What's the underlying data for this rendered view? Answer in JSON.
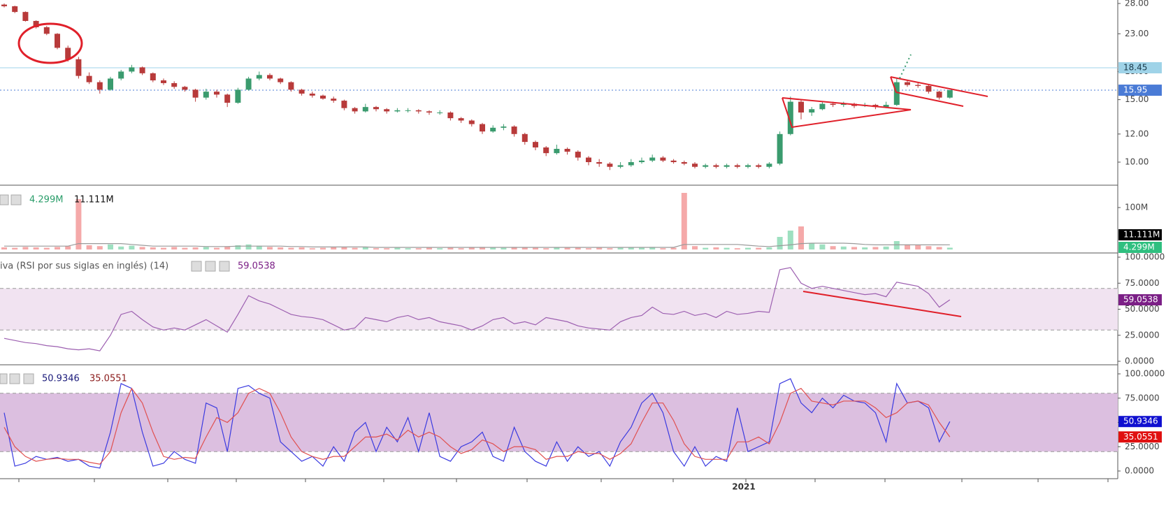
{
  "chart_data": [
    {
      "type": "candlestick",
      "log": true,
      "ylim": [
        8.61,
        28.64
      ],
      "yticks": [
        {
          "value": 28,
          "label": "28.00"
        },
        {
          "value": 23,
          "label": "23.00"
        },
        {
          "value": 18,
          "label": "18.00"
        },
        {
          "value": 15,
          "label": "15.00"
        },
        {
          "value": 12,
          "label": "12.00"
        },
        {
          "value": 10,
          "label": "10.00"
        }
      ],
      "up_color": "#3a9b6e",
      "down_color": "#b83a3a",
      "hlines": [
        {
          "value": 18.45,
          "color": "#9fd3e8",
          "text_color": "#1a3a4a",
          "line_style": "solid"
        },
        {
          "value": 15.95,
          "color": "#4a7bd6",
          "text_color": "#ffffff",
          "line_style": "dotted"
        }
      ],
      "x_label": "2021",
      "candles": [
        [
          27.8,
          28.0,
          27.3,
          27.5
        ],
        [
          27.5,
          27.6,
          26.3,
          26.5
        ],
        [
          26.5,
          26.6,
          24.9,
          25.0
        ],
        [
          25.0,
          25.1,
          23.8,
          24.0
        ],
        [
          24.0,
          24.2,
          22.8,
          23.0
        ],
        [
          23.0,
          23.1,
          20.8,
          21.0
        ],
        [
          21.0,
          21.3,
          19.2,
          19.5
        ],
        [
          19.5,
          19.8,
          17.2,
          17.5
        ],
        [
          17.5,
          17.9,
          16.6,
          16.8
        ],
        [
          16.8,
          17.0,
          15.6,
          16.0
        ],
        [
          16.0,
          17.4,
          15.9,
          17.2
        ],
        [
          17.2,
          18.2,
          17.0,
          18.0
        ],
        [
          18.0,
          18.8,
          17.8,
          18.5
        ],
        [
          18.5,
          18.6,
          17.6,
          17.8
        ],
        [
          17.8,
          17.9,
          16.8,
          17.0
        ],
        [
          17.0,
          17.2,
          16.5,
          16.7
        ],
        [
          16.7,
          16.9,
          16.1,
          16.3
        ],
        [
          16.3,
          16.4,
          15.8,
          16.0
        ],
        [
          16.0,
          16.1,
          14.8,
          15.2
        ],
        [
          15.2,
          16.1,
          15.0,
          15.8
        ],
        [
          15.8,
          16.0,
          15.2,
          15.5
        ],
        [
          15.5,
          15.6,
          14.3,
          14.7
        ],
        [
          14.7,
          16.2,
          14.6,
          16.0
        ],
        [
          16.0,
          17.4,
          15.9,
          17.2
        ],
        [
          17.2,
          18.0,
          17.0,
          17.6
        ],
        [
          17.6,
          17.8,
          17.0,
          17.2
        ],
        [
          17.2,
          17.3,
          16.6,
          16.8
        ],
        [
          16.8,
          16.9,
          15.8,
          16.0
        ],
        [
          16.0,
          16.1,
          15.4,
          15.6
        ],
        [
          15.6,
          15.8,
          15.2,
          15.4
        ],
        [
          15.4,
          15.5,
          15.0,
          15.1
        ],
        [
          15.1,
          15.3,
          14.7,
          14.9
        ],
        [
          14.9,
          15.0,
          14.0,
          14.2
        ],
        [
          14.2,
          14.3,
          13.7,
          13.9
        ],
        [
          13.9,
          14.6,
          13.8,
          14.3
        ],
        [
          14.3,
          14.4,
          13.9,
          14.1
        ],
        [
          14.1,
          14.2,
          13.7,
          13.9
        ],
        [
          13.9,
          14.2,
          13.8,
          14.0
        ],
        [
          14.0,
          14.2,
          13.8,
          14.0
        ],
        [
          14.0,
          14.1,
          13.7,
          13.9
        ],
        [
          13.9,
          14.0,
          13.6,
          13.8
        ],
        [
          13.8,
          14.0,
          13.6,
          13.8
        ],
        [
          13.8,
          13.9,
          13.1,
          13.3
        ],
        [
          13.3,
          13.4,
          12.9,
          13.1
        ],
        [
          13.1,
          13.2,
          12.6,
          12.8
        ],
        [
          12.8,
          12.9,
          12.0,
          12.2
        ],
        [
          12.2,
          12.7,
          12.1,
          12.5
        ],
        [
          12.5,
          12.8,
          12.3,
          12.6
        ],
        [
          12.6,
          12.7,
          11.8,
          12.0
        ],
        [
          12.0,
          12.1,
          11.2,
          11.4
        ],
        [
          11.4,
          11.5,
          10.8,
          11.0
        ],
        [
          11.0,
          11.1,
          10.4,
          10.6
        ],
        [
          10.6,
          11.2,
          10.5,
          10.9
        ],
        [
          10.9,
          11.0,
          10.5,
          10.7
        ],
        [
          10.7,
          10.8,
          10.1,
          10.3
        ],
        [
          10.3,
          10.4,
          9.8,
          10.0
        ],
        [
          10.0,
          10.2,
          9.7,
          9.9
        ],
        [
          9.9,
          10.0,
          9.5,
          9.7
        ],
        [
          9.7,
          10.0,
          9.6,
          9.8
        ],
        [
          9.8,
          10.2,
          9.7,
          10.0
        ],
        [
          10.0,
          10.3,
          9.9,
          10.1
        ],
        [
          10.1,
          10.5,
          10.0,
          10.3
        ],
        [
          10.3,
          10.4,
          10.0,
          10.1
        ],
        [
          10.1,
          10.2,
          9.9,
          10.0
        ],
        [
          10.0,
          10.1,
          9.8,
          9.9
        ],
        [
          9.9,
          10.0,
          9.6,
          9.7
        ],
        [
          9.7,
          9.9,
          9.6,
          9.8
        ],
        [
          9.8,
          9.9,
          9.6,
          9.7
        ],
        [
          9.7,
          9.9,
          9.6,
          9.8
        ],
        [
          9.8,
          9.9,
          9.6,
          9.7
        ],
        [
          9.7,
          9.9,
          9.6,
          9.8
        ],
        [
          9.8,
          9.9,
          9.6,
          9.7
        ],
        [
          9.7,
          10.0,
          9.6,
          9.9
        ],
        [
          9.9,
          12.2,
          9.8,
          12.0
        ],
        [
          12.0,
          15.3,
          11.9,
          14.8
        ],
        [
          14.8,
          15.0,
          13.2,
          13.8
        ],
        [
          13.8,
          14.3,
          13.5,
          14.1
        ],
        [
          14.1,
          14.8,
          14.0,
          14.6
        ],
        [
          14.6,
          14.8,
          14.3,
          14.5
        ],
        [
          14.5,
          14.8,
          14.3,
          14.6
        ],
        [
          14.6,
          14.7,
          14.2,
          14.4
        ],
        [
          14.4,
          14.7,
          14.3,
          14.5
        ],
        [
          14.5,
          14.6,
          14.1,
          14.3
        ],
        [
          14.3,
          14.8,
          14.2,
          14.5
        ],
        [
          14.5,
          17.3,
          14.4,
          16.8
        ],
        [
          16.8,
          17.0,
          16.3,
          16.5
        ],
        [
          16.5,
          16.7,
          16.2,
          16.4
        ],
        [
          16.4,
          16.5,
          15.6,
          15.8
        ],
        [
          15.8,
          15.9,
          15.0,
          15.2
        ],
        [
          15.2,
          16.0,
          15.1,
          15.95
        ]
      ]
    },
    {
      "type": "volume",
      "ylim": [
        0,
        150000000
      ],
      "yticks": [
        {
          "value": 100000000,
          "label": "100M"
        }
      ],
      "up_color": "#9ee0c0",
      "down_color": "#f5a9a9",
      "ma_color": "#999999",
      "last_label": "4.299M",
      "ma_last_label": "11.111M",
      "values": [
        5000000,
        4000000,
        6000000,
        5000000,
        4000000,
        6000000,
        8000000,
        120000000,
        10000000,
        8000000,
        12000000,
        7000000,
        9000000,
        6000000,
        5000000,
        4000000,
        6000000,
        4000000,
        5000000,
        6000000,
        4000000,
        7000000,
        10000000,
        12000000,
        9000000,
        6000000,
        5000000,
        4000000,
        5000000,
        3000000,
        4000000,
        5000000,
        6000000,
        4000000,
        5000000,
        3000000,
        3000000,
        4000000,
        3000000,
        3000000,
        4000000,
        3000000,
        4000000,
        3000000,
        5000000,
        6000000,
        5000000,
        4000000,
        6000000,
        5000000,
        4000000,
        3000000,
        5000000,
        4000000,
        4000000,
        3000000,
        4000000,
        3000000,
        4000000,
        5000000,
        4000000,
        6000000,
        3000000,
        4000000,
        135000000,
        8000000,
        4000000,
        5000000,
        4000000,
        3000000,
        4000000,
        4000000,
        5000000,
        30000000,
        45000000,
        55000000,
        15000000,
        12000000,
        8000000,
        7000000,
        6000000,
        5000000,
        6000000,
        7000000,
        20000000,
        12000000,
        10000000,
        8000000,
        6000000,
        4299000
      ],
      "ma": [
        8000000,
        8000000,
        8000000,
        8000000,
        8000000,
        8000000,
        8000000,
        14000000,
        14000000,
        14000000,
        14000000,
        14000000,
        12000000,
        10000000,
        8000000,
        8000000,
        8000000,
        8000000,
        8000000,
        7000000,
        7000000,
        7000000,
        8000000,
        8000000,
        8000000,
        8000000,
        8000000,
        7000000,
        7000000,
        6000000,
        6000000,
        6000000,
        6000000,
        6000000,
        6000000,
        5000000,
        5000000,
        5000000,
        5000000,
        5000000,
        5000000,
        5000000,
        5000000,
        5000000,
        5000000,
        5000000,
        5000000,
        5000000,
        5000000,
        5000000,
        5000000,
        5000000,
        5000000,
        5000000,
        5000000,
        5000000,
        5000000,
        5000000,
        5000000,
        5000000,
        5000000,
        5000000,
        5000000,
        5000000,
        12000000,
        12000000,
        12000000,
        12000000,
        12000000,
        12000000,
        10000000,
        8000000,
        7000000,
        9000000,
        11000000,
        14000000,
        15000000,
        15000000,
        15000000,
        15000000,
        14000000,
        12000000,
        11000000,
        11000000,
        11000000,
        11000000,
        11000000,
        11000000,
        11000000,
        11111000
      ]
    },
    {
      "type": "line",
      "title": "iva (RSI por sus siglas en inglés) (14)",
      "ylim": [
        0,
        100
      ],
      "yticks": [
        {
          "value": 100,
          "label": "100.0000"
        },
        {
          "value": 75,
          "label": "75.0000"
        },
        {
          "value": 50,
          "label": "50.0000"
        },
        {
          "value": 25,
          "label": "25.0000"
        },
        {
          "value": 0,
          "label": "0.0000"
        }
      ],
      "band": [
        30,
        70
      ],
      "band_color": "#f1e3f1",
      "series": [
        {
          "color": "#9c5fb0",
          "box_color": "#7b1f86",
          "values": [
            22,
            20,
            18,
            17,
            15,
            14,
            12,
            11,
            12,
            10,
            25,
            45,
            48,
            40,
            33,
            30,
            32,
            30,
            35,
            40,
            34,
            28,
            45,
            63,
            58,
            55,
            50,
            45,
            43,
            42,
            40,
            35,
            30,
            32,
            42,
            40,
            38,
            42,
            44,
            40,
            42,
            38,
            36,
            34,
            30,
            34,
            40,
            42,
            36,
            38,
            35,
            42,
            40,
            38,
            34,
            32,
            31,
            30,
            38,
            42,
            44,
            52,
            46,
            45,
            48,
            44,
            46,
            42,
            48,
            45,
            46,
            48,
            47,
            88,
            90,
            75,
            70,
            72,
            70,
            68,
            66,
            64,
            65,
            62,
            76,
            74,
            72,
            65,
            52,
            59.0538
          ]
        }
      ]
    },
    {
      "type": "line",
      "ylim": [
        0,
        100
      ],
      "yticks": [
        {
          "value": 100,
          "label": "100.0000"
        },
        {
          "value": 75,
          "label": "75.0000"
        },
        {
          "value": 50,
          "label": "50.0000"
        },
        {
          "value": 25,
          "label": "25.0000"
        },
        {
          "value": 0,
          "label": "0.0000"
        }
      ],
      "band": [
        20,
        80
      ],
      "band_color": "#dcbfe0",
      "series": [
        {
          "color": "#3a3ae0",
          "box_color": "#1010d0",
          "values": [
            60,
            5,
            8,
            15,
            12,
            14,
            10,
            12,
            5,
            3,
            40,
            90,
            85,
            40,
            5,
            8,
            20,
            12,
            8,
            70,
            65,
            20,
            85,
            88,
            80,
            75,
            30,
            20,
            10,
            15,
            5,
            25,
            10,
            40,
            50,
            20,
            45,
            30,
            55,
            20,
            60,
            15,
            10,
            25,
            30,
            40,
            15,
            10,
            45,
            20,
            10,
            5,
            30,
            10,
            25,
            15,
            20,
            5,
            30,
            45,
            70,
            80,
            60,
            20,
            5,
            25,
            5,
            15,
            10,
            65,
            20,
            25,
            30,
            90,
            95,
            70,
            60,
            75,
            65,
            78,
            72,
            70,
            60,
            30,
            90,
            70,
            72,
            65,
            30,
            50.9346
          ]
        },
        {
          "color": "#e05050",
          "box_color": "#e01010",
          "values": [
            45,
            25,
            15,
            10,
            12,
            13,
            12,
            12,
            9,
            7,
            20,
            60,
            85,
            70,
            40,
            15,
            12,
            14,
            13,
            35,
            55,
            50,
            60,
            80,
            85,
            80,
            60,
            35,
            20,
            15,
            12,
            15,
            15,
            25,
            35,
            35,
            38,
            32,
            42,
            35,
            40,
            35,
            25,
            18,
            22,
            32,
            28,
            20,
            25,
            25,
            22,
            12,
            15,
            15,
            20,
            18,
            18,
            12,
            18,
            28,
            50,
            70,
            70,
            52,
            28,
            15,
            12,
            12,
            12,
            30,
            30,
            35,
            28,
            50,
            80,
            85,
            72,
            70,
            68,
            72,
            72,
            72,
            65,
            55,
            60,
            70,
            72,
            68,
            50,
            35.0551
          ]
        }
      ]
    }
  ]
}
